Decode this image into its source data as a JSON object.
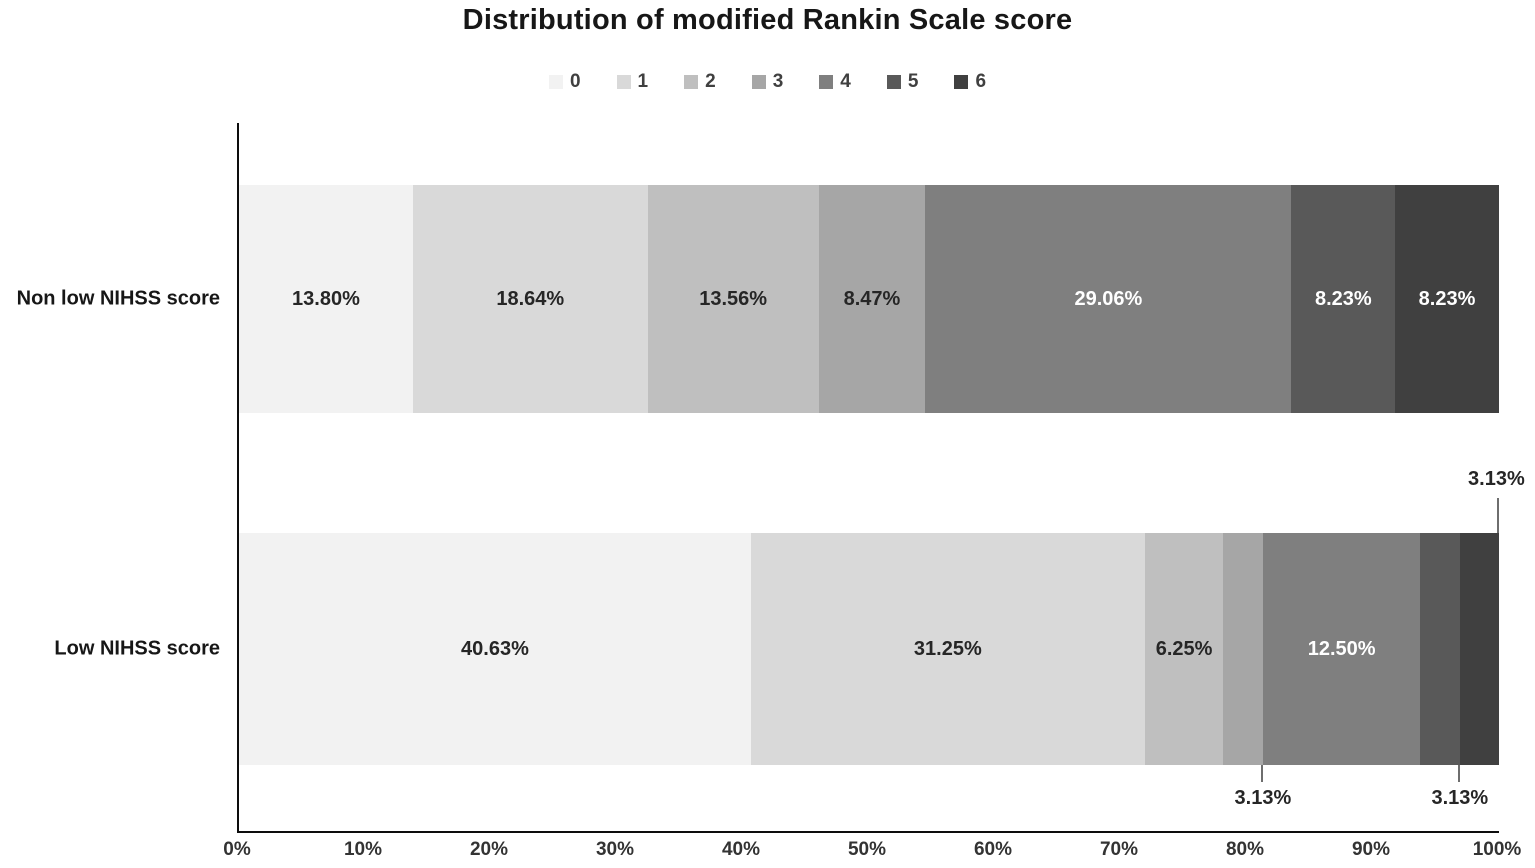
{
  "title": "Distribution of modified Rankin Scale score",
  "text_colors": {
    "dark": "#262626",
    "light": "#ffffff"
  },
  "chart_data": {
    "type": "bar",
    "orientation": "horizontal-stacked",
    "title": "Distribution of modified Rankin Scale score",
    "categories": [
      "Non low NIHSS score",
      "Low NIHSS score"
    ],
    "series": [
      {
        "name": "0",
        "color": "#f2f2f2",
        "values": [
          13.8,
          40.63
        ]
      },
      {
        "name": "1",
        "color": "#d9d9d9",
        "values": [
          18.64,
          31.25
        ]
      },
      {
        "name": "2",
        "color": "#bfbfbf",
        "values": [
          13.56,
          6.25
        ]
      },
      {
        "name": "3",
        "color": "#a6a6a6",
        "values": [
          8.47,
          3.13
        ]
      },
      {
        "name": "4",
        "color": "#7f7f7f",
        "values": [
          29.06,
          12.5
        ]
      },
      {
        "name": "5",
        "color": "#595959",
        "values": [
          8.23,
          3.13
        ]
      },
      {
        "name": "6",
        "color": "#404040",
        "values": [
          8.23,
          3.13
        ]
      }
    ],
    "labels": [
      [
        "13.80%",
        "18.64%",
        "13.56%",
        "8.47%",
        "29.06%",
        "8.23%",
        "8.23%"
      ],
      [
        "40.63%",
        "31.25%",
        "6.25%",
        "3.13%",
        "12.50%",
        "3.13%",
        "3.13%"
      ]
    ],
    "label_styles": [
      [
        "inside-dark",
        "inside-dark",
        "inside-dark",
        "inside-dark",
        "inside-light",
        "inside-light",
        "inside-light"
      ],
      [
        "inside-dark",
        "inside-dark",
        "inside-dark",
        "callout-below",
        "inside-light",
        "callout-below",
        "callout-above"
      ]
    ],
    "xlim": [
      0,
      100
    ],
    "x_ticks": [
      "0%",
      "10%",
      "20%",
      "30%",
      "40%",
      "50%",
      "60%",
      "70%",
      "80%",
      "90%",
      "100%"
    ],
    "legend_position": "top",
    "grid": false
  }
}
